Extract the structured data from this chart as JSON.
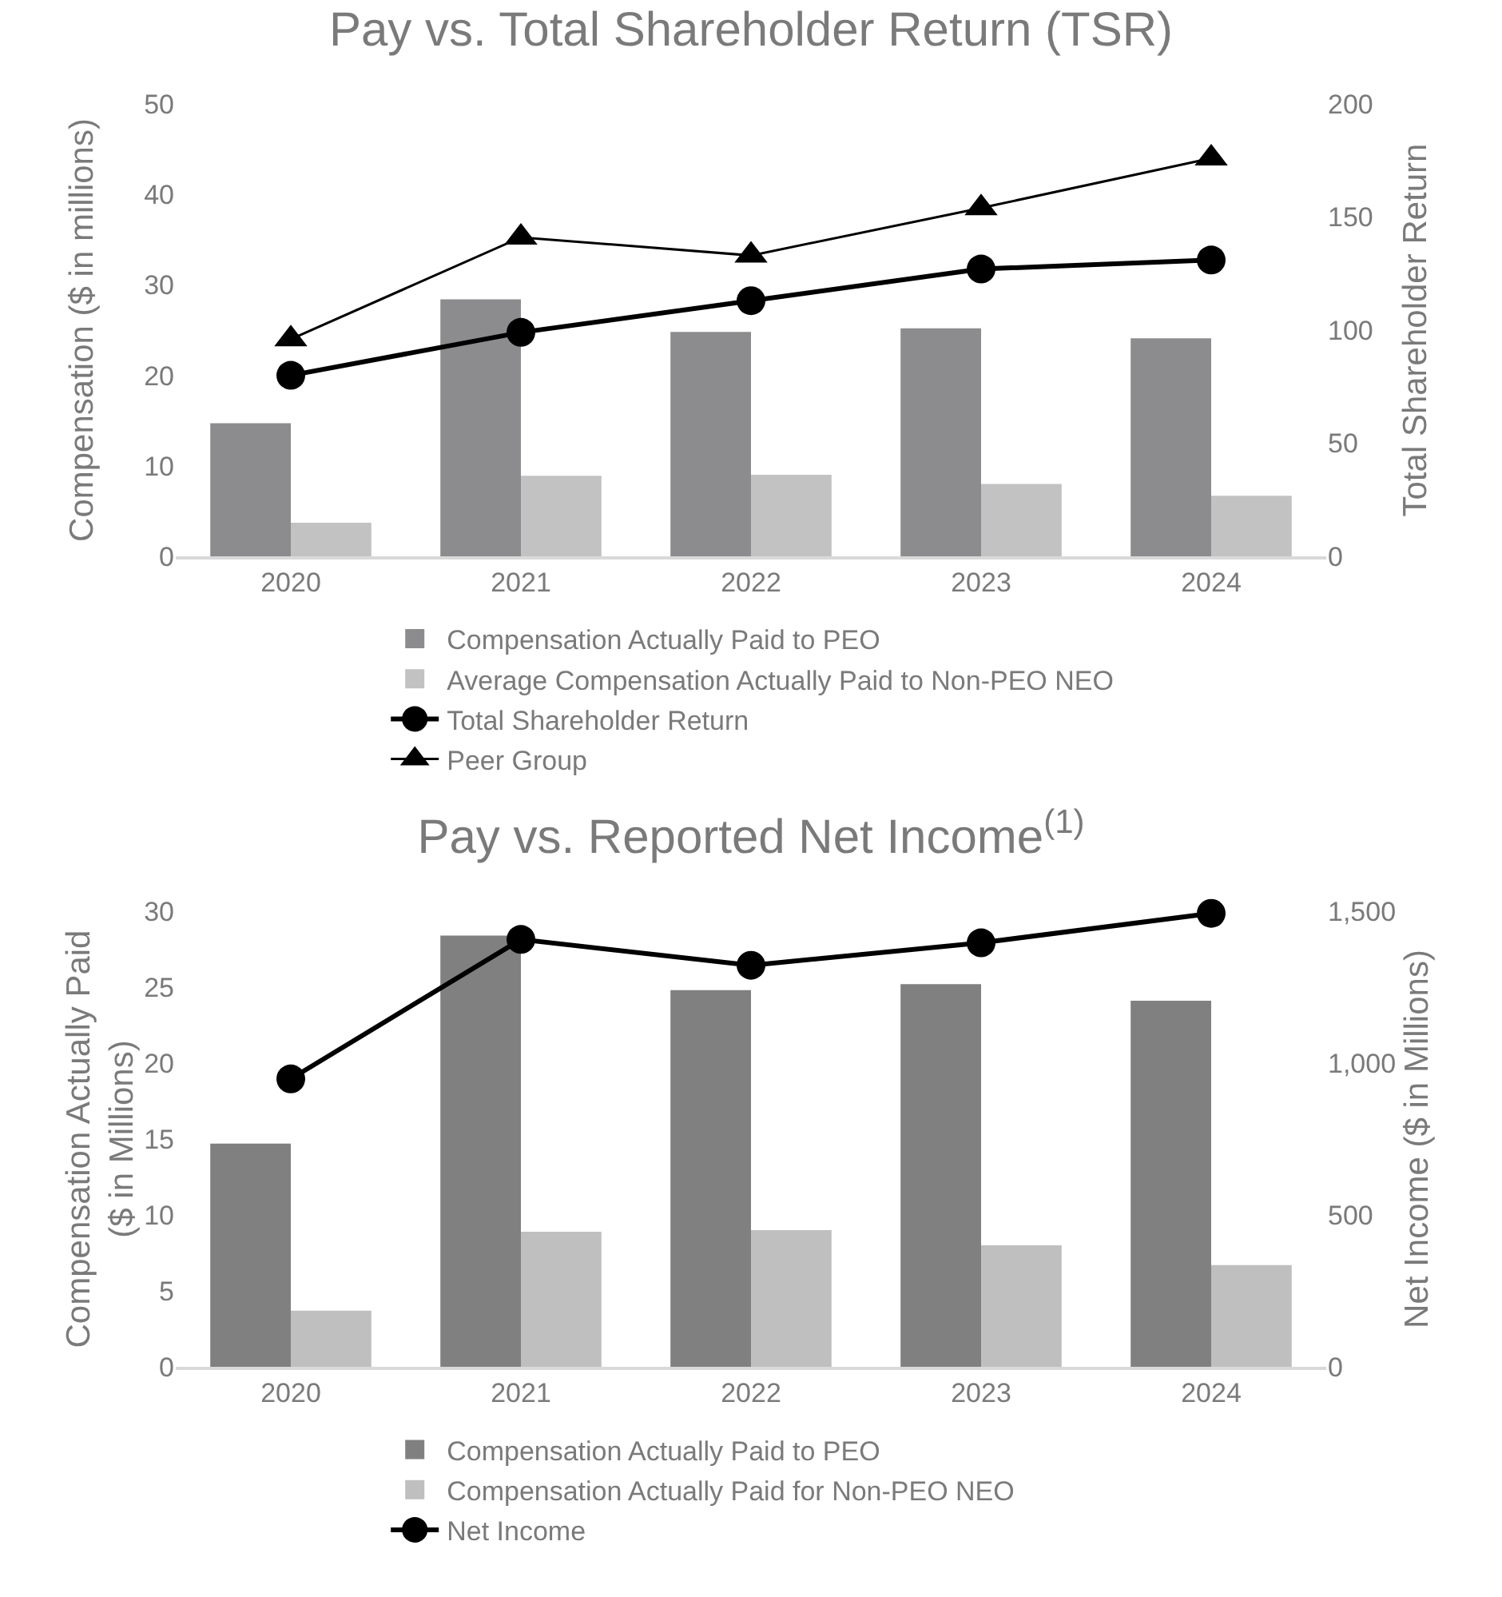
{
  "chart_data": [
    {
      "type": "bar",
      "title": "Pay vs. Total Shareholder Return (TSR)",
      "ylabel": "Compensation ($ in millions)",
      "y2label": "Total Shareholder Return",
      "categories": [
        "2020",
        "2021",
        "2022",
        "2023",
        "2024"
      ],
      "series": [
        {
          "name": "Compensation Actually Paid to PEO",
          "color": "#8c8c8e",
          "values": [
            14.7,
            28.4,
            24.8,
            25.2,
            24.1
          ]
        },
        {
          "name": "Average Compensation Actually Paid to Non-PEO NEO",
          "color": "#c2c2c3",
          "values": [
            3.7,
            8.9,
            9.0,
            8.0,
            6.7
          ]
        },
        {
          "name": "Total Shareholder Return",
          "type": "line",
          "axis": "y2",
          "color": "#000000",
          "marker": "circle",
          "values": [
            80,
            99,
            113,
            127,
            131
          ]
        },
        {
          "name": "Peer Group",
          "type": "line",
          "axis": "y2",
          "color": "#000000",
          "marker": "triangle",
          "values": [
            96,
            141,
            133,
            154,
            176
          ]
        }
      ],
      "ylim": [
        0,
        50
      ],
      "yticks": [
        0,
        10,
        20,
        30,
        40,
        50
      ],
      "y2lim": [
        0,
        200
      ],
      "y2ticks": [
        0,
        50,
        100,
        150,
        200
      ],
      "grid": false,
      "legend": "bottom"
    },
    {
      "type": "bar",
      "title": "Pay vs. Reported Net Income$^{(1)}$",
      "ylabel": "Compensation Actually Paid\n($ in Millions)",
      "y2label": "Net Income ($ in Millions)",
      "categories": [
        "2020",
        "2021",
        "2022",
        "2023",
        "2024"
      ],
      "series": [
        {
          "name": "Compensation Actually Paid to PEO",
          "color": "#808080",
          "values": [
            14.7,
            28.4,
            24.8,
            25.2,
            24.1
          ]
        },
        {
          "name": "Compensation Actually Paid for Non-PEO NEO",
          "color": "#bfbfbf",
          "values": [
            3.7,
            8.9,
            9.0,
            8.0,
            6.7
          ]
        },
        {
          "name": "Net Income",
          "type": "line",
          "axis": "y2",
          "color": "#000000",
          "marker": "circle",
          "values": [
            948,
            1407,
            1322,
            1396,
            1493
          ]
        }
      ],
      "ylim": [
        0,
        30
      ],
      "yticks": [
        0,
        5,
        10,
        15,
        20,
        25,
        30
      ],
      "y2lim": [
        0,
        1500
      ],
      "y2ticks": [
        0,
        {
          "value": 500,
          "label": "500"
        },
        {
          "value": 1000,
          "label": "1,000"
        },
        {
          "value": 1500,
          "label": "1,500"
        }
      ],
      "grid": false,
      "legend": "bottom"
    }
  ]
}
